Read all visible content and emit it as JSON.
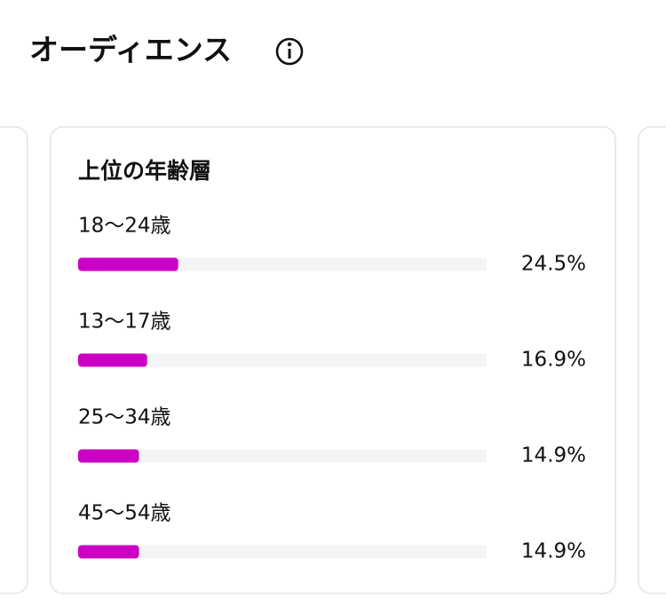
{
  "header": {
    "title": "オーディエンス"
  },
  "chart_data": {
    "type": "bar",
    "orientation": "horizontal",
    "title": "上位の年齢層",
    "categories": [
      "18〜24歳",
      "13〜17歳",
      "25〜34歳",
      "45〜54歳"
    ],
    "values": [
      24.5,
      16.9,
      14.9,
      14.9
    ],
    "value_labels": [
      "24.5%",
      "16.9%",
      "14.9%",
      "14.9%"
    ],
    "xlim": [
      0,
      100
    ],
    "color": "#cc00c4"
  }
}
